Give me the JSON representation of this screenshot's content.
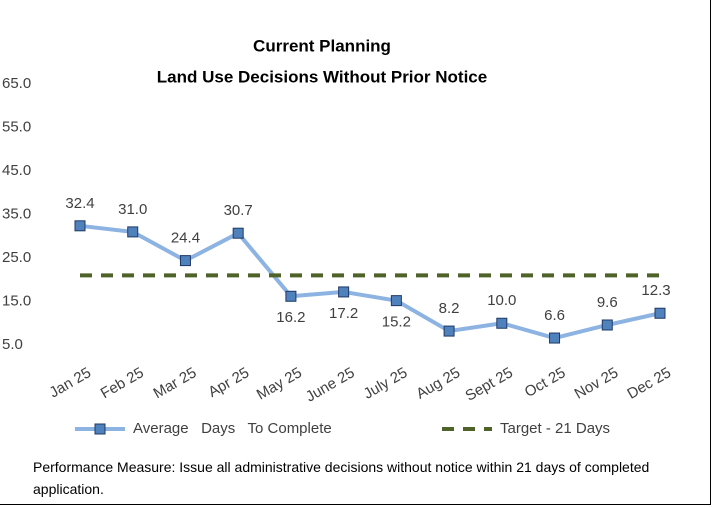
{
  "chart_data": {
    "type": "line",
    "title": "Current Planning",
    "subtitle": "Land Use Decisions Without Prior Notice",
    "categories": [
      "Jan 25",
      "Feb 25",
      "Mar 25",
      "Apr 25",
      "May 25",
      "June 25",
      "July 25",
      "Aug 25",
      "Sept 25",
      "Oct 25",
      "Nov 25",
      "Dec 25"
    ],
    "series": [
      {
        "name": "Average   Days   To Complete",
        "color": "#8db3e2",
        "marker_color": "#4f81bd",
        "values": [
          32.4,
          31.0,
          24.4,
          30.7,
          16.2,
          17.2,
          15.2,
          8.2,
          10.0,
          6.6,
          9.6,
          12.3
        ],
        "value_labels": [
          "32.4",
          "31.0",
          "24.4",
          "30.7",
          "16.2",
          "17.2",
          "15.2",
          "8.2",
          "10.0",
          "6.6",
          "9.6",
          "12.3"
        ]
      },
      {
        "name": "Target - 21 Days",
        "color": "#4f6228",
        "dashed": true,
        "values": [
          21,
          21,
          21,
          21,
          21,
          21,
          21,
          21,
          21,
          21,
          21,
          21
        ]
      }
    ],
    "ylim": [
      5,
      65
    ],
    "yticks": [
      {
        "value": 5,
        "label": "5.0"
      },
      {
        "value": 15,
        "label": "15.0"
      },
      {
        "value": 25,
        "label": "25.0"
      },
      {
        "value": 35,
        "label": "35.0"
      },
      {
        "value": 45,
        "label": "45.0"
      },
      {
        "value": 55,
        "label": "55.0"
      },
      {
        "value": 65,
        "label": "65.0"
      }
    ],
    "grid": false,
    "legend": "bottom",
    "note": "Performance Measure:  Issue all administrative decisions without notice within 21 days of completed application."
  }
}
